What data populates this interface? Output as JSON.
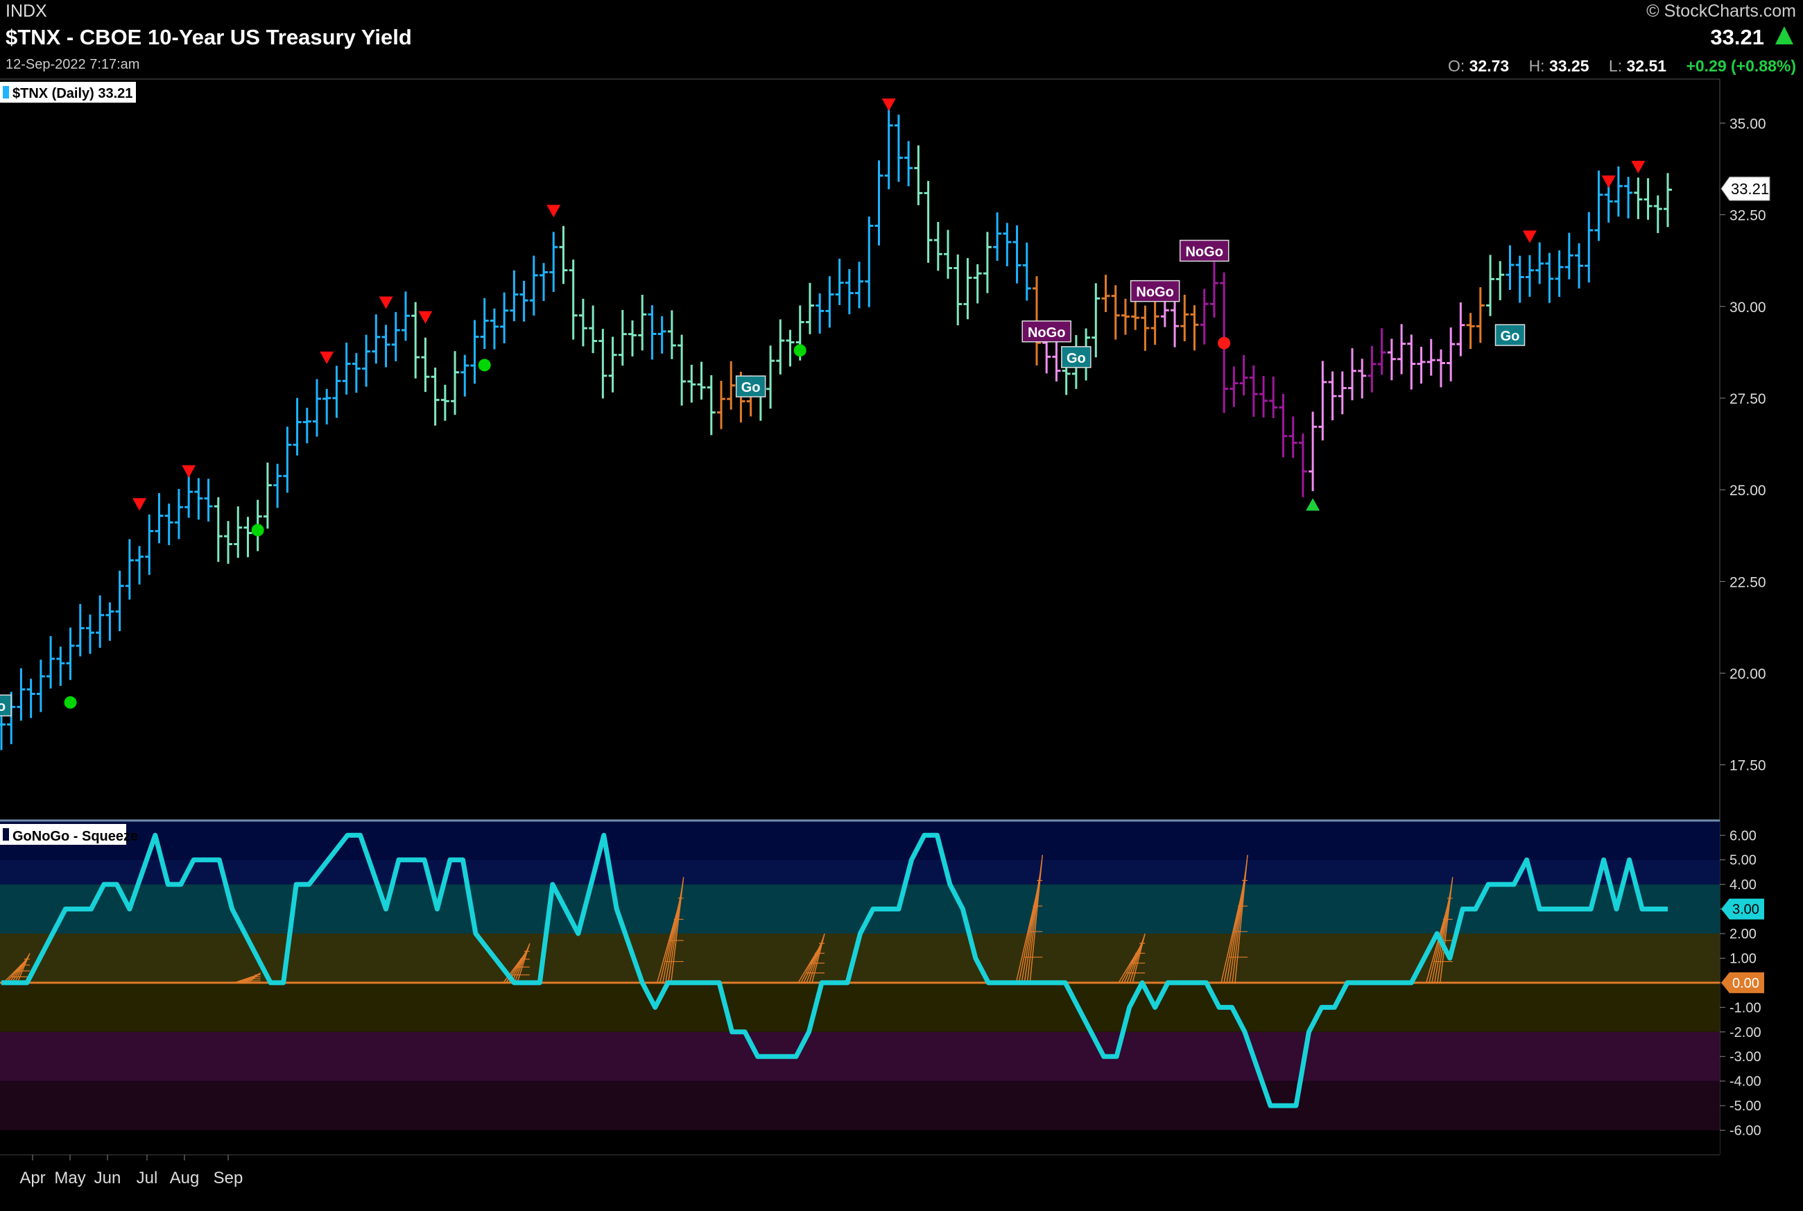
{
  "header": {
    "exchange": "INDX",
    "title": "$TNX - CBOE 10-Year US Treasury Yield",
    "timestamp": "12-Sep-2022 7:17:am",
    "watermark": "© StockCharts.com",
    "last": "33.21",
    "open_label": "O:",
    "open": "32.73",
    "high_label": "H:",
    "high": "33.25",
    "low_label": "L:",
    "low": "32.51",
    "change": "+0.29 (+0.88%)"
  },
  "colors": {
    "strong_go": "#1eb4ff",
    "weak_go": "#7fe8c0",
    "go_fading": "#e07b2a",
    "weak_nogo": "#f08ef0",
    "strong_nogo": "#a0189e",
    "oscillator": "#19d2d9",
    "zero_line": "#e07b2a",
    "up_triangle": "#1ecf3a",
    "down_triangle": "#ff1010"
  },
  "chart_data": [
    {
      "type": "ohlc",
      "title": "$TNX (Daily) 33.21",
      "y_ticks": [
        "35.00",
        "32.50",
        "30.00",
        "27.50",
        "25.00",
        "22.50",
        "20.00",
        "17.50"
      ],
      "ylim": [
        16.0,
        36.2
      ],
      "last_value_label": "33.21",
      "x_labels": [
        "Apr",
        "May",
        "Jun",
        "Jul",
        "Aug",
        "Sep"
      ],
      "regime_points": [
        {
          "day": 0,
          "close": 18.9,
          "regime": "strong_go"
        },
        {
          "day": 5,
          "close": 20.2,
          "regime": "strong_go"
        },
        {
          "day": 10,
          "close": 21.5,
          "regime": "strong_go"
        },
        {
          "day": 15,
          "close": 23.9,
          "regime": "strong_go"
        },
        {
          "day": 20,
          "close": 24.9,
          "regime": "strong_go"
        },
        {
          "day": 23,
          "close": 23.6,
          "regime": "weak_go"
        },
        {
          "day": 26,
          "close": 24.3,
          "regime": "weak_go"
        },
        {
          "day": 29,
          "close": 26.2,
          "regime": "strong_go"
        },
        {
          "day": 33,
          "close": 27.8,
          "regime": "strong_go"
        },
        {
          "day": 37,
          "close": 28.8,
          "regime": "strong_go"
        },
        {
          "day": 41,
          "close": 29.5,
          "regime": "strong_go"
        },
        {
          "day": 43,
          "close": 28.0,
          "regime": "weak_go"
        },
        {
          "day": 45,
          "close": 27.5,
          "regime": "weak_go"
        },
        {
          "day": 48,
          "close": 29.2,
          "regime": "strong_go"
        },
        {
          "day": 53,
          "close": 30.3,
          "regime": "strong_go"
        },
        {
          "day": 56,
          "close": 31.7,
          "regime": "strong_go"
        },
        {
          "day": 58,
          "close": 30.0,
          "regime": "weak_go"
        },
        {
          "day": 61,
          "close": 28.3,
          "regime": "weak_go"
        },
        {
          "day": 65,
          "close": 29.7,
          "regime": "weak_go"
        },
        {
          "day": 67,
          "close": 29.4,
          "regime": "strong_go"
        },
        {
          "day": 69,
          "close": 28.2,
          "regime": "weak_go"
        },
        {
          "day": 72,
          "close": 27.3,
          "regime": "weak_go"
        },
        {
          "day": 74,
          "close": 27.6,
          "regime": "go_fading"
        },
        {
          "day": 76,
          "close": 27.5,
          "regime": "go_fading"
        },
        {
          "day": 78,
          "close": 28.6,
          "regime": "weak_go"
        },
        {
          "day": 81,
          "close": 29.6,
          "regime": "weak_go"
        },
        {
          "day": 84,
          "close": 30.3,
          "regime": "strong_go"
        },
        {
          "day": 87,
          "close": 30.6,
          "regime": "strong_go"
        },
        {
          "day": 88,
          "close": 32.5,
          "regime": "strong_go"
        },
        {
          "day": 90,
          "close": 34.8,
          "regime": "strong_go"
        },
        {
          "day": 92,
          "close": 33.8,
          "regime": "strong_go"
        },
        {
          "day": 94,
          "close": 32.0,
          "regime": "weak_go"
        },
        {
          "day": 97,
          "close": 30.2,
          "regime": "weak_go"
        },
        {
          "day": 100,
          "close": 31.7,
          "regime": "weak_go"
        },
        {
          "day": 102,
          "close": 32.0,
          "regime": "strong_go"
        },
        {
          "day": 104,
          "close": 30.3,
          "regime": "strong_go"
        },
        {
          "day": 105,
          "close": 29.2,
          "regime": "go_fading"
        },
        {
          "day": 107,
          "close": 28.0,
          "regime": "weak_nogo"
        },
        {
          "day": 109,
          "close": 28.6,
          "regime": "weak_go"
        },
        {
          "day": 111,
          "close": 30.3,
          "regime": "weak_go"
        },
        {
          "day": 113,
          "close": 30.0,
          "regime": "go_fading"
        },
        {
          "day": 115,
          "close": 29.5,
          "regime": "go_fading"
        },
        {
          "day": 117,
          "close": 29.7,
          "regime": "go_fading"
        },
        {
          "day": 119,
          "close": 29.6,
          "regime": "weak_nogo"
        },
        {
          "day": 121,
          "close": 29.8,
          "regime": "go_fading"
        },
        {
          "day": 123,
          "close": 30.5,
          "regime": "strong_nogo"
        },
        {
          "day": 124,
          "close": 28.0,
          "regime": "strong_nogo"
        },
        {
          "day": 127,
          "close": 27.8,
          "regime": "strong_nogo"
        },
        {
          "day": 130,
          "close": 26.6,
          "regime": "strong_nogo"
        },
        {
          "day": 132,
          "close": 25.8,
          "regime": "strong_nogo"
        },
        {
          "day": 134,
          "close": 27.8,
          "regime": "weak_nogo"
        },
        {
          "day": 136,
          "close": 27.8,
          "regime": "weak_nogo"
        },
        {
          "day": 138,
          "close": 28.3,
          "regime": "weak_nogo"
        },
        {
          "day": 140,
          "close": 28.5,
          "regime": "strong_nogo"
        },
        {
          "day": 142,
          "close": 28.9,
          "regime": "weak_nogo"
        },
        {
          "day": 145,
          "close": 28.4,
          "regime": "weak_nogo"
        },
        {
          "day": 148,
          "close": 29.3,
          "regime": "weak_nogo"
        },
        {
          "day": 150,
          "close": 30.0,
          "regime": "go_fading"
        },
        {
          "day": 152,
          "close": 31.0,
          "regime": "weak_go"
        },
        {
          "day": 154,
          "close": 31.1,
          "regime": "strong_go"
        },
        {
          "day": 157,
          "close": 31.0,
          "regime": "strong_go"
        },
        {
          "day": 160,
          "close": 31.3,
          "regime": "strong_go"
        },
        {
          "day": 162,
          "close": 32.8,
          "regime": "strong_go"
        },
        {
          "day": 165,
          "close": 33.4,
          "regime": "strong_go"
        },
        {
          "day": 167,
          "close": 32.6,
          "regime": "weak_go"
        },
        {
          "day": 169,
          "close": 33.21,
          "regime": "weak_go"
        }
      ],
      "markers": [
        {
          "type": "circle_green",
          "day": 7,
          "value": 19.2
        },
        {
          "type": "circle_green",
          "day": 26,
          "value": 23.9
        },
        {
          "type": "circle_green",
          "day": 49,
          "value": 28.4
        },
        {
          "type": "circle_green",
          "day": 81,
          "value": 28.8
        },
        {
          "type": "circle_red",
          "day": 124,
          "value": 29.0
        },
        {
          "type": "triangle_down_red",
          "day": 14,
          "value": 24.6
        },
        {
          "type": "triangle_down_red",
          "day": 19,
          "value": 25.5
        },
        {
          "type": "triangle_down_red",
          "day": 33,
          "value": 28.6
        },
        {
          "type": "triangle_down_red",
          "day": 39,
          "value": 30.1
        },
        {
          "type": "triangle_down_red",
          "day": 43,
          "value": 29.7
        },
        {
          "type": "triangle_down_red",
          "day": 56,
          "value": 32.6
        },
        {
          "type": "triangle_down_red",
          "day": 90,
          "value": 35.5
        },
        {
          "type": "triangle_down_red",
          "day": 155,
          "value": 31.9
        },
        {
          "type": "triangle_down_red",
          "day": 163,
          "value": 33.4
        },
        {
          "type": "triangle_down_red",
          "day": 166,
          "value": 33.8
        },
        {
          "type": "triangle_up_green",
          "day": 133,
          "value": 24.6
        }
      ],
      "labels": [
        {
          "text": "o",
          "kind": "Go",
          "day": 0,
          "value": 19.1
        },
        {
          "text": "Go",
          "kind": "Go",
          "day": 76,
          "value": 27.8
        },
        {
          "text": "NoGo",
          "kind": "NoGo",
          "day": 106,
          "value": 29.3
        },
        {
          "text": "Go",
          "kind": "Go",
          "day": 109,
          "value": 28.6
        },
        {
          "text": "NoGo",
          "kind": "NoGo",
          "day": 117,
          "value": 30.4
        },
        {
          "text": "NoGo",
          "kind": "NoGo",
          "day": 122,
          "value": 31.5
        },
        {
          "text": "Go",
          "kind": "Go",
          "day": 153,
          "value": 29.2
        }
      ]
    },
    {
      "type": "line",
      "title": "GoNoGo - Squeeze",
      "y_ticks": [
        "6.00",
        "5.00",
        "4.00",
        "3.00",
        "2.00",
        "1.00",
        "0.00",
        "-1.00",
        "-2.00",
        "-3.00",
        "-4.00",
        "-5.00",
        "-6.00"
      ],
      "ylim": [
        -7.0,
        6.6
      ],
      "last_value_label": "3.00",
      "zero_label": "0.00",
      "bands": [
        {
          "from": 5,
          "to": 6.6,
          "color": "#000a3c"
        },
        {
          "from": 4,
          "to": 5,
          "color": "#05124a"
        },
        {
          "from": 2,
          "to": 4,
          "color": "#023c46"
        },
        {
          "from": 0,
          "to": 2,
          "color": "#32300a"
        },
        {
          "from": -2,
          "to": 0,
          "color": "#262300"
        },
        {
          "from": -4,
          "to": -2,
          "color": "#330a30"
        },
        {
          "from": -6,
          "to": -4,
          "color": "#1c0617"
        },
        {
          "from": -7,
          "to": -6,
          "color": "#000000"
        }
      ],
      "series": [
        {
          "name": "",
          "points": [
            [
              0,
              0
            ],
            [
              2,
              0
            ],
            [
              4,
              2
            ],
            [
              5,
              3
            ],
            [
              7,
              3
            ],
            [
              8,
              4
            ],
            [
              9,
              4
            ],
            [
              10,
              3
            ],
            [
              12,
              6
            ],
            [
              13,
              4
            ],
            [
              14,
              4
            ],
            [
              15,
              5
            ],
            [
              17,
              5
            ],
            [
              18,
              3
            ],
            [
              21,
              0
            ],
            [
              22,
              0
            ],
            [
              23,
              4
            ],
            [
              24,
              4
            ],
            [
              27,
              6
            ],
            [
              28,
              6
            ],
            [
              30,
              3
            ],
            [
              31,
              5
            ],
            [
              33,
              5
            ],
            [
              34,
              3
            ],
            [
              35,
              5
            ],
            [
              36,
              5
            ],
            [
              37,
              2
            ],
            [
              40,
              0
            ],
            [
              42,
              0
            ],
            [
              43,
              4
            ],
            [
              45,
              2
            ],
            [
              47,
              6
            ],
            [
              48,
              3
            ],
            [
              50,
              0
            ],
            [
              51,
              -1
            ],
            [
              52,
              0
            ],
            [
              56,
              0
            ],
            [
              57,
              -2
            ],
            [
              58,
              -2
            ],
            [
              59,
              -3
            ],
            [
              62,
              -3
            ],
            [
              63,
              -2
            ],
            [
              64,
              0
            ],
            [
              66,
              0
            ],
            [
              67,
              2
            ],
            [
              68,
              3
            ],
            [
              70,
              3
            ],
            [
              71,
              5
            ],
            [
              72,
              6
            ],
            [
              73,
              6
            ],
            [
              74,
              4
            ],
            [
              75,
              3
            ],
            [
              76,
              1
            ],
            [
              77,
              0
            ],
            [
              79,
              0
            ],
            [
              80,
              0
            ],
            [
              83,
              0
            ],
            [
              84,
              -1
            ],
            [
              86,
              -3
            ],
            [
              87,
              -3
            ],
            [
              88,
              -1
            ],
            [
              89,
              0
            ],
            [
              90,
              -1
            ],
            [
              91,
              0
            ],
            [
              92,
              0
            ],
            [
              94,
              0
            ],
            [
              95,
              -1
            ],
            [
              96,
              -1
            ],
            [
              97,
              -2
            ],
            [
              99,
              -5
            ],
            [
              101,
              -5
            ],
            [
              102,
              -2
            ],
            [
              103,
              -1
            ],
            [
              104,
              -1
            ],
            [
              105,
              0
            ],
            [
              108,
              0
            ],
            [
              110,
              0
            ],
            [
              111,
              1
            ],
            [
              112,
              2
            ],
            [
              113,
              1
            ],
            [
              114,
              3
            ],
            [
              115,
              3
            ],
            [
              116,
              4
            ],
            [
              118,
              4
            ],
            [
              119,
              5
            ],
            [
              120,
              3
            ],
            [
              122,
              3
            ],
            [
              124,
              3
            ],
            [
              125,
              5
            ],
            [
              126,
              3
            ],
            [
              127,
              5
            ],
            [
              128,
              3
            ],
            [
              130,
              3
            ]
          ]
        }
      ],
      "squeeze_spikes": [
        {
          "day": 2,
          "peak": 1.2
        },
        {
          "day": 20,
          "peak": 0.4
        },
        {
          "day": 41,
          "peak": 1.6
        },
        {
          "day": 53,
          "peak": 4.3
        },
        {
          "day": 64,
          "peak": 2.0
        },
        {
          "day": 81,
          "peak": 5.2
        },
        {
          "day": 89,
          "peak": 2.0
        },
        {
          "day": 97,
          "peak": 5.2
        },
        {
          "day": 113,
          "peak": 4.3
        }
      ]
    }
  ]
}
